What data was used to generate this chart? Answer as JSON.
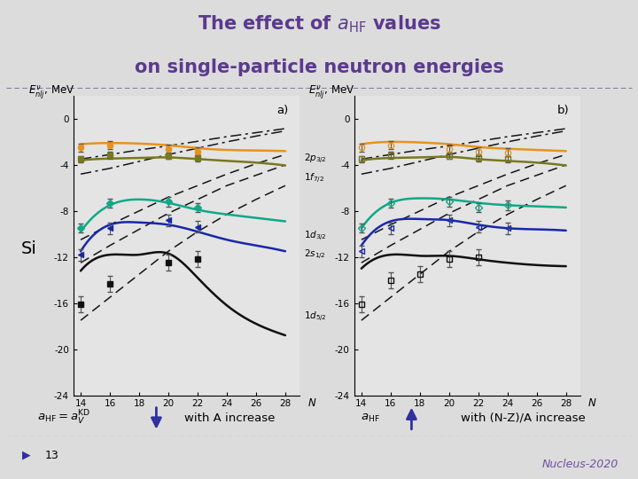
{
  "title_color": "#5B3A8E",
  "bg_color": "#DCDCDC",
  "panel_bg": "#E8E8E8",
  "dashed_sep_color": "#8080A0",
  "slide_number": "13",
  "conference": "Nucleus-2020",
  "conference_color": "#7050A0",
  "footer_arrow_color": "#3030A0",
  "panel_a_label": "a)",
  "panel_b_label": "b)",
  "N_values": [
    14,
    16,
    18,
    20,
    22,
    24,
    26,
    28
  ],
  "ylim": [
    -24,
    2
  ],
  "yticks": [
    0,
    -4,
    -8,
    -12,
    -16,
    -20,
    -24
  ],
  "colors": {
    "orange": "#E8921E",
    "olive": "#787820",
    "teal": "#10A888",
    "blue": "#1828A8",
    "black": "#101010"
  },
  "panel_a": {
    "N": [
      14,
      16,
      18,
      20,
      22,
      24,
      26,
      28
    ],
    "orange_solid": [
      -2.2,
      -2.1,
      -2.15,
      -2.3,
      -2.55,
      -2.7,
      -2.75,
      -2.8
    ],
    "orange_data_x": [
      14,
      16,
      20,
      22
    ],
    "orange_data_y": [
      -2.5,
      -2.3,
      -2.6,
      -2.85
    ],
    "orange_err": [
      0.35,
      0.35,
      0.35,
      0.35
    ],
    "olive_solid": [
      -3.6,
      -3.45,
      -3.4,
      -3.35,
      -3.5,
      -3.65,
      -3.8,
      -4.05
    ],
    "olive_data_x": [
      14,
      16,
      20,
      22
    ],
    "olive_data_y": [
      -3.5,
      -3.15,
      -3.2,
      -3.4
    ],
    "olive_err": [
      0.3,
      0.3,
      0.3,
      0.3
    ],
    "teal_solid": [
      -9.8,
      -7.5,
      -7.0,
      -7.3,
      -7.9,
      -8.3,
      -8.6,
      -8.9
    ],
    "teal_data_x": [
      14,
      16,
      20,
      22
    ],
    "teal_data_y": [
      -9.5,
      -7.3,
      -7.2,
      -7.7
    ],
    "teal_err": [
      0.4,
      0.4,
      0.4,
      0.4
    ],
    "blue_solid": [
      -11.5,
      -9.2,
      -9.0,
      -9.2,
      -9.8,
      -10.5,
      -11.0,
      -11.5
    ],
    "blue_data_x": [
      14,
      16,
      20,
      22
    ],
    "blue_data_y": [
      -11.8,
      -9.5,
      -8.8,
      -9.4
    ],
    "blue_err": [
      0.5,
      0.5,
      0.5,
      0.5
    ],
    "black_solid": [
      -13.2,
      -11.8,
      -11.8,
      -11.7,
      -13.8,
      -16.2,
      -17.8,
      -18.8
    ],
    "black_data_x": [
      14,
      16,
      20,
      22
    ],
    "black_data_y": [
      -16.1,
      -14.3,
      -12.5,
      -12.2
    ],
    "black_err": [
      0.7,
      0.7,
      0.7,
      0.7
    ],
    "dashed_styles": [
      "dashdot",
      "dashdot",
      "dashed",
      "dashed",
      "dashed"
    ],
    "dashed_lines": [
      [
        -3.5,
        -3.1,
        -2.7,
        -2.35,
        -1.95,
        -1.55,
        -1.2,
        -0.85
      ],
      [
        -4.8,
        -4.3,
        -3.7,
        -3.1,
        -2.55,
        -2.0,
        -1.5,
        -1.05
      ],
      [
        -10.5,
        -9.2,
        -8.0,
        -6.8,
        -5.8,
        -4.8,
        -3.9,
        -3.1
      ],
      [
        -12.5,
        -11.0,
        -9.6,
        -8.2,
        -7.0,
        -5.8,
        -4.9,
        -4.0
      ],
      [
        -17.5,
        -15.5,
        -13.5,
        -11.5,
        -9.8,
        -8.3,
        -7.0,
        -5.8
      ]
    ]
  },
  "panel_b": {
    "N": [
      14,
      16,
      18,
      20,
      22,
      24,
      26,
      28
    ],
    "orange_solid": [
      -2.2,
      -2.0,
      -2.05,
      -2.2,
      -2.45,
      -2.6,
      -2.7,
      -2.8
    ],
    "orange_data_x": [
      14,
      16,
      20,
      22,
      24
    ],
    "orange_data_y": [
      -2.5,
      -2.3,
      -2.6,
      -2.85,
      -2.9
    ],
    "orange_err": [
      0.35,
      0.35,
      0.35,
      0.35,
      0.35
    ],
    "olive_solid": [
      -3.6,
      -3.4,
      -3.35,
      -3.3,
      -3.5,
      -3.65,
      -3.8,
      -4.05
    ],
    "olive_data_x": [
      14,
      16,
      20,
      22,
      24
    ],
    "olive_data_y": [
      -3.5,
      -3.15,
      -3.2,
      -3.4,
      -3.5
    ],
    "olive_err": [
      0.3,
      0.3,
      0.3,
      0.3,
      0.3
    ],
    "teal_solid": [
      -9.5,
      -7.3,
      -6.9,
      -7.0,
      -7.3,
      -7.5,
      -7.6,
      -7.7
    ],
    "teal_data_x": [
      14,
      16,
      20,
      22,
      24
    ],
    "teal_data_y": [
      -9.5,
      -7.3,
      -7.2,
      -7.7,
      -7.5
    ],
    "teal_err": [
      0.4,
      0.4,
      0.4,
      0.4,
      0.4
    ],
    "blue_solid": [
      -11.0,
      -8.9,
      -8.7,
      -8.8,
      -9.2,
      -9.5,
      -9.6,
      -9.7
    ],
    "blue_data_x": [
      14,
      16,
      20,
      22,
      24
    ],
    "blue_data_y": [
      -11.5,
      -9.5,
      -8.8,
      -9.4,
      -9.5
    ],
    "blue_err": [
      0.5,
      0.5,
      0.5,
      0.5,
      0.5
    ],
    "black_solid": [
      -13.0,
      -11.8,
      -11.9,
      -11.9,
      -12.2,
      -12.5,
      -12.7,
      -12.8
    ],
    "black_data_x": [
      14,
      16,
      18,
      20,
      22
    ],
    "black_data_y": [
      -16.1,
      -14.0,
      -13.5,
      -12.2,
      -12.0
    ],
    "black_err": [
      0.7,
      0.7,
      0.7,
      0.7,
      0.7
    ],
    "dashed_styles": [
      "dashdot",
      "dashdot",
      "dashed",
      "dashed",
      "dashed"
    ],
    "dashed_lines": [
      [
        -3.5,
        -3.1,
        -2.7,
        -2.35,
        -1.95,
        -1.55,
        -1.2,
        -0.85
      ],
      [
        -4.8,
        -4.3,
        -3.7,
        -3.1,
        -2.55,
        -2.0,
        -1.5,
        -1.05
      ],
      [
        -10.5,
        -9.2,
        -8.0,
        -6.8,
        -5.8,
        -4.8,
        -3.9,
        -3.1
      ],
      [
        -12.5,
        -11.0,
        -9.6,
        -8.2,
        -7.0,
        -5.8,
        -4.9,
        -4.0
      ],
      [
        -17.5,
        -15.5,
        -13.5,
        -11.5,
        -9.8,
        -8.3,
        -7.0,
        -5.8
      ]
    ]
  },
  "orbital_labels_left": [
    "2p_{3/2}",
    "1f_{7/2}",
    "1d_{3/2}",
    "2s_{1/2}",
    "1d_{5/2}"
  ],
  "orbital_y_left": [
    -3.5,
    -5.2,
    -10.2,
    -11.8,
    -17.2
  ]
}
